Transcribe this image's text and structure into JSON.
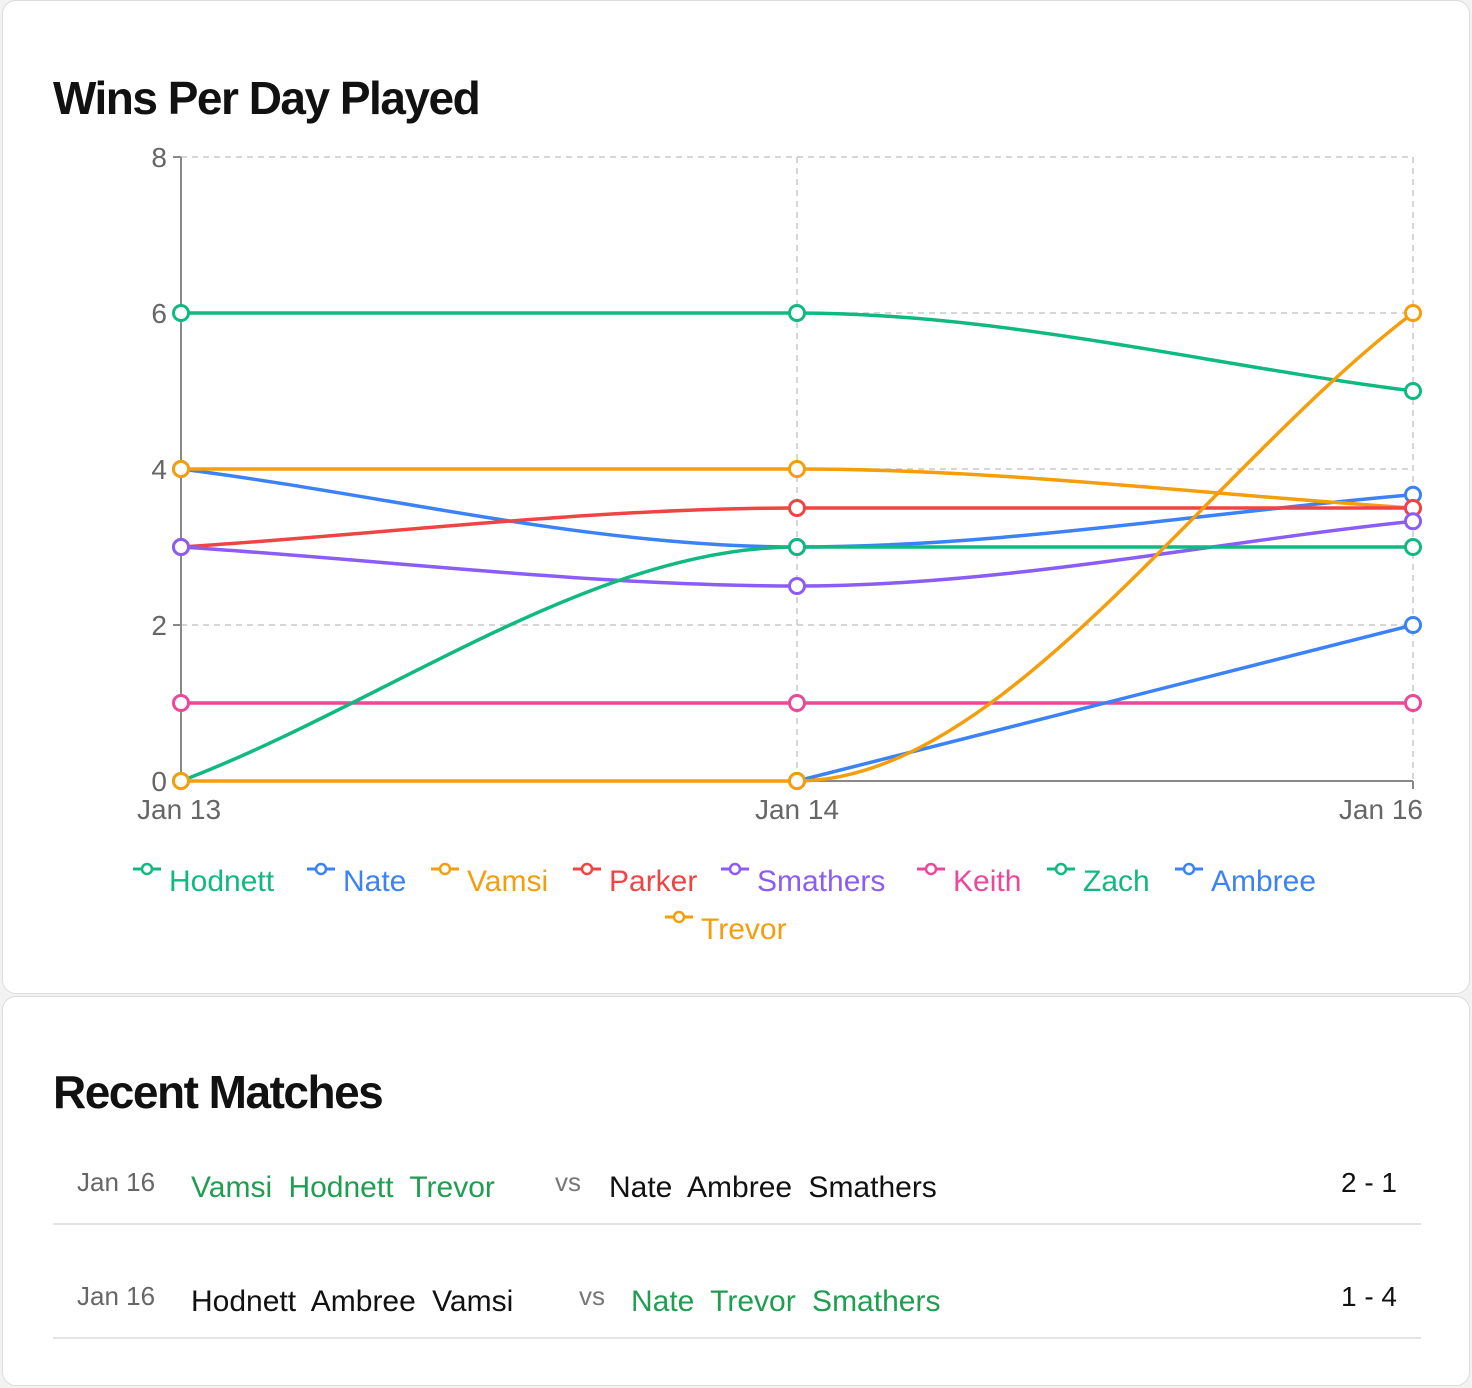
{
  "chart_card": {
    "title": "Wins Per Day Played"
  },
  "chart_data": {
    "type": "line",
    "title": "Wins Per Day Played",
    "categories": [
      "Jan 13",
      "Jan 14",
      "Jan 16"
    ],
    "ylim": [
      0,
      8
    ],
    "yticks": [
      0,
      2,
      4,
      6,
      8
    ],
    "grid": true,
    "legend_position": "bottom",
    "series": [
      {
        "name": "Hodnett",
        "color": "#10b981",
        "values": [
          6,
          6,
          5
        ]
      },
      {
        "name": "Nate",
        "color": "#3b82f6",
        "values": [
          4,
          3,
          3.67
        ]
      },
      {
        "name": "Vamsi",
        "color": "#f59e0b",
        "values": [
          4,
          4,
          3.5
        ]
      },
      {
        "name": "Parker",
        "color": "#ef4444",
        "values": [
          3,
          3.5,
          3.5
        ]
      },
      {
        "name": "Smathers",
        "color": "#8b5cf6",
        "values": [
          3,
          2.5,
          3.33
        ]
      },
      {
        "name": "Keith",
        "color": "#ec4899",
        "values": [
          1,
          1,
          1
        ]
      },
      {
        "name": "Zach",
        "color": "#10b981",
        "values": [
          0,
          3,
          3
        ]
      },
      {
        "name": "Ambree",
        "color": "#3b82f6",
        "values": [
          null,
          0,
          2
        ]
      },
      {
        "name": "Trevor",
        "color": "#f59e0b",
        "values": [
          0,
          0,
          6
        ]
      }
    ]
  },
  "matches_card": {
    "title": "Recent Matches",
    "vs_label": "vs",
    "matches": [
      {
        "date": "Jan 16",
        "team1": "Vamsi Hodnett Trevor",
        "team2": "Nate Ambree Smathers",
        "score": "2 - 1",
        "winner": 1
      },
      {
        "date": "Jan 16",
        "team1": "Hodnett Ambree Vamsi",
        "team2": "Nate Trevor Smathers",
        "score": "1 - 4",
        "winner": 2
      }
    ]
  }
}
